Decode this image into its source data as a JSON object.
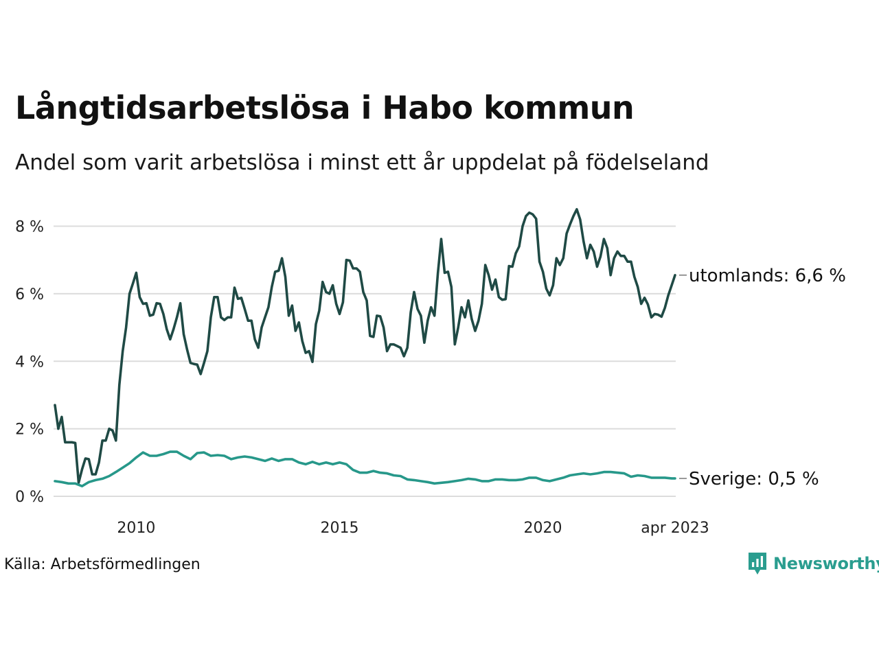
{
  "title": "Långtidsarbetslösa i Habo kommun",
  "subtitle": "Andel som varit arbetslösa i minst ett år uppdelat på födelseland",
  "source": "Källa: Arbetsförmedlingen",
  "brand": "Newsworthy",
  "colors": {
    "utomlands": "#1f4a45",
    "sverige": "#27988a",
    "grid": "#dcdcdc",
    "brand": "#2a9d8f"
  },
  "chart_data": {
    "type": "line",
    "title": "Långtidsarbetslösa i Habo kommun",
    "subtitle": "Andel som varit arbetslösa i minst ett år uppdelat på födelseland",
    "x_start": "2008-01",
    "x_end": "2023-04",
    "x_ticks": [
      {
        "date": "2010-01",
        "label": "2010"
      },
      {
        "date": "2015-01",
        "label": "2015"
      },
      {
        "date": "2020-01",
        "label": "2020"
      },
      {
        "date": "2023-04",
        "label": "apr 2023"
      }
    ],
    "ylim": [
      0,
      8.6
    ],
    "y_ticks": [
      {
        "value": 0,
        "label": "0 %"
      },
      {
        "value": 2,
        "label": "2 %"
      },
      {
        "value": 4,
        "label": "4 %"
      },
      {
        "value": 6,
        "label": "6 %"
      },
      {
        "value": 8,
        "label": "8 %"
      }
    ],
    "grid": true,
    "series": [
      {
        "key": "utomlands",
        "end_label": "utomlands: 6,6 %",
        "points": [
          [
            "2008-01",
            2.7
          ],
          [
            "2008-02",
            2.0
          ],
          [
            "2008-03",
            2.35
          ],
          [
            "2008-04",
            1.6
          ],
          [
            "2008-05",
            1.6
          ],
          [
            "2008-06",
            1.6
          ],
          [
            "2008-07",
            1.58
          ],
          [
            "2008-08",
            0.4
          ],
          [
            "2008-09",
            0.8
          ],
          [
            "2008-10",
            1.12
          ],
          [
            "2008-11",
            1.1
          ],
          [
            "2008-12",
            0.65
          ],
          [
            "2009-01",
            0.65
          ],
          [
            "2009-02",
            1.0
          ],
          [
            "2009-03",
            1.65
          ],
          [
            "2009-04",
            1.65
          ],
          [
            "2009-05",
            2.0
          ],
          [
            "2009-06",
            1.95
          ],
          [
            "2009-07",
            1.65
          ],
          [
            "2009-08",
            3.3
          ],
          [
            "2009-09",
            4.3
          ],
          [
            "2009-10",
            5.0
          ],
          [
            "2009-11",
            6.0
          ],
          [
            "2009-12",
            6.3
          ],
          [
            "2010-01",
            6.62
          ],
          [
            "2010-02",
            5.9
          ],
          [
            "2010-03",
            5.7
          ],
          [
            "2010-04",
            5.72
          ],
          [
            "2010-05",
            5.35
          ],
          [
            "2010-06",
            5.38
          ],
          [
            "2010-07",
            5.72
          ],
          [
            "2010-08",
            5.7
          ],
          [
            "2010-09",
            5.4
          ],
          [
            "2010-10",
            4.95
          ],
          [
            "2010-11",
            4.65
          ],
          [
            "2010-12",
            4.95
          ],
          [
            "2011-01",
            5.3
          ],
          [
            "2011-02",
            5.72
          ],
          [
            "2011-03",
            4.8
          ],
          [
            "2011-04",
            4.35
          ],
          [
            "2011-05",
            3.95
          ],
          [
            "2011-06",
            3.92
          ],
          [
            "2011-07",
            3.9
          ],
          [
            "2011-08",
            3.62
          ],
          [
            "2011-09",
            3.95
          ],
          [
            "2011-10",
            4.3
          ],
          [
            "2011-11",
            5.3
          ],
          [
            "2011-12",
            5.9
          ],
          [
            "2012-01",
            5.9
          ],
          [
            "2012-02",
            5.3
          ],
          [
            "2012-03",
            5.22
          ],
          [
            "2012-04",
            5.3
          ],
          [
            "2012-05",
            5.3
          ],
          [
            "2012-06",
            6.18
          ],
          [
            "2012-07",
            5.85
          ],
          [
            "2012-08",
            5.88
          ],
          [
            "2012-09",
            5.55
          ],
          [
            "2012-10",
            5.2
          ],
          [
            "2012-11",
            5.2
          ],
          [
            "2012-12",
            4.65
          ],
          [
            "2013-01",
            4.4
          ],
          [
            "2013-02",
            5.0
          ],
          [
            "2013-03",
            5.3
          ],
          [
            "2013-04",
            5.6
          ],
          [
            "2013-05",
            6.2
          ],
          [
            "2013-06",
            6.65
          ],
          [
            "2013-07",
            6.68
          ],
          [
            "2013-08",
            7.05
          ],
          [
            "2013-09",
            6.5
          ],
          [
            "2013-10",
            5.35
          ],
          [
            "2013-11",
            5.65
          ],
          [
            "2013-12",
            4.9
          ],
          [
            "2014-01",
            5.15
          ],
          [
            "2014-02",
            4.6
          ],
          [
            "2014-03",
            4.25
          ],
          [
            "2014-04",
            4.3
          ],
          [
            "2014-05",
            3.98
          ],
          [
            "2014-06",
            5.1
          ],
          [
            "2014-07",
            5.5
          ],
          [
            "2014-08",
            6.35
          ],
          [
            "2014-09",
            6.05
          ],
          [
            "2014-10",
            6.0
          ],
          [
            "2014-11",
            6.25
          ],
          [
            "2014-12",
            5.7
          ],
          [
            "2015-01",
            5.4
          ],
          [
            "2015-02",
            5.75
          ],
          [
            "2015-03",
            7.0
          ],
          [
            "2015-04",
            6.98
          ],
          [
            "2015-05",
            6.75
          ],
          [
            "2015-06",
            6.75
          ],
          [
            "2015-07",
            6.65
          ],
          [
            "2015-08",
            6.05
          ],
          [
            "2015-09",
            5.8
          ],
          [
            "2015-10",
            4.75
          ],
          [
            "2015-11",
            4.72
          ],
          [
            "2015-12",
            5.35
          ],
          [
            "2016-01",
            5.33
          ],
          [
            "2016-02",
            5.0
          ],
          [
            "2016-03",
            4.3
          ],
          [
            "2016-04",
            4.5
          ],
          [
            "2016-05",
            4.5
          ],
          [
            "2016-06",
            4.45
          ],
          [
            "2016-07",
            4.4
          ],
          [
            "2016-08",
            4.15
          ],
          [
            "2016-09",
            4.4
          ],
          [
            "2016-10",
            5.45
          ],
          [
            "2016-11",
            6.05
          ],
          [
            "2016-12",
            5.55
          ],
          [
            "2017-01",
            5.35
          ],
          [
            "2017-02",
            4.55
          ],
          [
            "2017-03",
            5.2
          ],
          [
            "2017-04",
            5.6
          ],
          [
            "2017-05",
            5.35
          ],
          [
            "2017-06",
            6.6
          ],
          [
            "2017-07",
            7.62
          ],
          [
            "2017-08",
            6.62
          ],
          [
            "2017-09",
            6.65
          ],
          [
            "2017-10",
            6.2
          ],
          [
            "2017-11",
            4.5
          ],
          [
            "2017-12",
            5.0
          ],
          [
            "2018-01",
            5.6
          ],
          [
            "2018-02",
            5.3
          ],
          [
            "2018-03",
            5.8
          ],
          [
            "2018-04",
            5.25
          ],
          [
            "2018-05",
            4.9
          ],
          [
            "2018-06",
            5.2
          ],
          [
            "2018-07",
            5.7
          ],
          [
            "2018-08",
            6.85
          ],
          [
            "2018-09",
            6.55
          ],
          [
            "2018-10",
            6.12
          ],
          [
            "2018-11",
            6.42
          ],
          [
            "2018-12",
            5.9
          ],
          [
            "2019-01",
            5.82
          ],
          [
            "2019-02",
            5.84
          ],
          [
            "2019-03",
            6.82
          ],
          [
            "2019-04",
            6.8
          ],
          [
            "2019-05",
            7.2
          ],
          [
            "2019-06",
            7.4
          ],
          [
            "2019-07",
            8.0
          ],
          [
            "2019-08",
            8.3
          ],
          [
            "2019-09",
            8.4
          ],
          [
            "2019-10",
            8.35
          ],
          [
            "2019-11",
            8.22
          ],
          [
            "2019-12",
            6.95
          ],
          [
            "2020-01",
            6.65
          ],
          [
            "2020-02",
            6.15
          ],
          [
            "2020-03",
            5.95
          ],
          [
            "2020-04",
            6.25
          ],
          [
            "2020-05",
            7.05
          ],
          [
            "2020-06",
            6.85
          ],
          [
            "2020-07",
            7.05
          ],
          [
            "2020-08",
            7.78
          ],
          [
            "2020-09",
            8.05
          ],
          [
            "2020-10",
            8.3
          ],
          [
            "2020-11",
            8.5
          ],
          [
            "2020-12",
            8.2
          ],
          [
            "2021-01",
            7.55
          ],
          [
            "2021-02",
            7.05
          ],
          [
            "2021-03",
            7.45
          ],
          [
            "2021-04",
            7.25
          ],
          [
            "2021-05",
            6.8
          ],
          [
            "2021-06",
            7.1
          ],
          [
            "2021-07",
            7.62
          ],
          [
            "2021-08",
            7.35
          ],
          [
            "2021-09",
            6.55
          ],
          [
            "2021-10",
            7.05
          ],
          [
            "2021-11",
            7.25
          ],
          [
            "2021-12",
            7.12
          ],
          [
            "2022-01",
            7.12
          ],
          [
            "2022-02",
            6.95
          ],
          [
            "2022-03",
            6.95
          ],
          [
            "2022-04",
            6.5
          ],
          [
            "2022-05",
            6.2
          ],
          [
            "2022-06",
            5.7
          ],
          [
            "2022-07",
            5.88
          ],
          [
            "2022-08",
            5.68
          ],
          [
            "2022-09",
            5.3
          ],
          [
            "2022-10",
            5.4
          ],
          [
            "2022-11",
            5.38
          ],
          [
            "2022-12",
            5.32
          ],
          [
            "2023-01",
            5.58
          ],
          [
            "2023-02",
            5.95
          ],
          [
            "2023-03",
            6.25
          ],
          [
            "2023-04",
            6.55
          ]
        ]
      },
      {
        "key": "sverige",
        "end_label": "Sverige: 0,5 %",
        "points": [
          [
            "2008-01",
            0.45
          ],
          [
            "2008-03",
            0.42
          ],
          [
            "2008-05",
            0.38
          ],
          [
            "2008-07",
            0.38
          ],
          [
            "2008-09",
            0.3
          ],
          [
            "2008-11",
            0.42
          ],
          [
            "2009-01",
            0.48
          ],
          [
            "2009-03",
            0.52
          ],
          [
            "2009-05",
            0.6
          ],
          [
            "2009-07",
            0.72
          ],
          [
            "2009-09",
            0.85
          ],
          [
            "2009-11",
            0.98
          ],
          [
            "2010-01",
            1.15
          ],
          [
            "2010-03",
            1.3
          ],
          [
            "2010-05",
            1.2
          ],
          [
            "2010-07",
            1.2
          ],
          [
            "2010-09",
            1.25
          ],
          [
            "2010-11",
            1.32
          ],
          [
            "2011-01",
            1.32
          ],
          [
            "2011-03",
            1.2
          ],
          [
            "2011-05",
            1.1
          ],
          [
            "2011-07",
            1.28
          ],
          [
            "2011-09",
            1.3
          ],
          [
            "2011-11",
            1.2
          ],
          [
            "2012-01",
            1.22
          ],
          [
            "2012-03",
            1.2
          ],
          [
            "2012-05",
            1.1
          ],
          [
            "2012-07",
            1.15
          ],
          [
            "2012-09",
            1.18
          ],
          [
            "2012-11",
            1.15
          ],
          [
            "2013-01",
            1.1
          ],
          [
            "2013-03",
            1.05
          ],
          [
            "2013-05",
            1.12
          ],
          [
            "2013-07",
            1.05
          ],
          [
            "2013-09",
            1.1
          ],
          [
            "2013-11",
            1.1
          ],
          [
            "2014-01",
            1.0
          ],
          [
            "2014-03",
            0.95
          ],
          [
            "2014-05",
            1.02
          ],
          [
            "2014-07",
            0.95
          ],
          [
            "2014-09",
            1.0
          ],
          [
            "2014-11",
            0.95
          ],
          [
            "2015-01",
            1.0
          ],
          [
            "2015-03",
            0.95
          ],
          [
            "2015-05",
            0.78
          ],
          [
            "2015-07",
            0.7
          ],
          [
            "2015-09",
            0.7
          ],
          [
            "2015-11",
            0.75
          ],
          [
            "2016-01",
            0.7
          ],
          [
            "2016-03",
            0.68
          ],
          [
            "2016-05",
            0.62
          ],
          [
            "2016-07",
            0.6
          ],
          [
            "2016-09",
            0.5
          ],
          [
            "2016-11",
            0.48
          ],
          [
            "2017-01",
            0.45
          ],
          [
            "2017-03",
            0.42
          ],
          [
            "2017-05",
            0.38
          ],
          [
            "2017-07",
            0.4
          ],
          [
            "2017-09",
            0.42
          ],
          [
            "2017-11",
            0.45
          ],
          [
            "2018-01",
            0.48
          ],
          [
            "2018-03",
            0.52
          ],
          [
            "2018-05",
            0.5
          ],
          [
            "2018-07",
            0.45
          ],
          [
            "2018-09",
            0.45
          ],
          [
            "2018-11",
            0.5
          ],
          [
            "2019-01",
            0.5
          ],
          [
            "2019-03",
            0.48
          ],
          [
            "2019-05",
            0.48
          ],
          [
            "2019-07",
            0.5
          ],
          [
            "2019-09",
            0.55
          ],
          [
            "2019-11",
            0.55
          ],
          [
            "2020-01",
            0.48
          ],
          [
            "2020-03",
            0.45
          ],
          [
            "2020-05",
            0.5
          ],
          [
            "2020-07",
            0.55
          ],
          [
            "2020-09",
            0.62
          ],
          [
            "2020-11",
            0.65
          ],
          [
            "2021-01",
            0.68
          ],
          [
            "2021-03",
            0.65
          ],
          [
            "2021-05",
            0.68
          ],
          [
            "2021-07",
            0.72
          ],
          [
            "2021-09",
            0.72
          ],
          [
            "2021-11",
            0.7
          ],
          [
            "2022-01",
            0.68
          ],
          [
            "2022-03",
            0.58
          ],
          [
            "2022-05",
            0.62
          ],
          [
            "2022-07",
            0.6
          ],
          [
            "2022-09",
            0.55
          ],
          [
            "2022-11",
            0.55
          ],
          [
            "2023-01",
            0.55
          ],
          [
            "2023-03",
            0.53
          ],
          [
            "2023-04",
            0.53
          ]
        ]
      }
    ]
  }
}
